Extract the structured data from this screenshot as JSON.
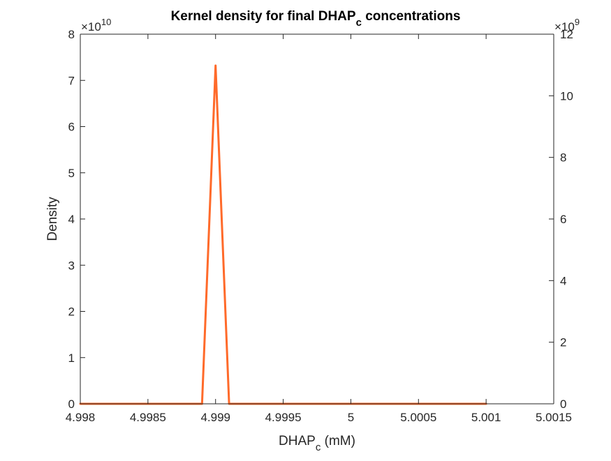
{
  "chart_data": {
    "type": "line",
    "title": {
      "main": "Kernel density for final DHAP",
      "sub": "c",
      "tail": " concentrations"
    },
    "xlabel": {
      "main": "DHAP",
      "sub": "c",
      "tail": " (mM)"
    },
    "ylabel": "Density",
    "xlim": [
      4.998,
      5.0015
    ],
    "ylim_left": [
      0,
      8
    ],
    "ylim_right": [
      0,
      12
    ],
    "left_multiplier": {
      "base": "×10",
      "exp": "10"
    },
    "right_multiplier": {
      "base": "×10",
      "exp": "9"
    },
    "x_ticks": [
      {
        "v": 4.998,
        "label": "4.998"
      },
      {
        "v": 4.9985,
        "label": "4.9985"
      },
      {
        "v": 4.999,
        "label": "4.999"
      },
      {
        "v": 4.9995,
        "label": "4.9995"
      },
      {
        "v": 5.0,
        "label": "5"
      },
      {
        "v": 5.0005,
        "label": "5.0005"
      },
      {
        "v": 5.001,
        "label": "5.001"
      },
      {
        "v": 5.0015,
        "label": "5.0015"
      }
    ],
    "left_ticks": [
      {
        "v": 0,
        "label": "0"
      },
      {
        "v": 1,
        "label": "1"
      },
      {
        "v": 2,
        "label": "2"
      },
      {
        "v": 3,
        "label": "3"
      },
      {
        "v": 4,
        "label": "4"
      },
      {
        "v": 5,
        "label": "5"
      },
      {
        "v": 6,
        "label": "6"
      },
      {
        "v": 7,
        "label": "7"
      },
      {
        "v": 8,
        "label": "8"
      }
    ],
    "right_ticks": [
      {
        "v": 0,
        "label": "0"
      },
      {
        "v": 2,
        "label": "2"
      },
      {
        "v": 4,
        "label": "4"
      },
      {
        "v": 6,
        "label": "6"
      },
      {
        "v": 8,
        "label": "8"
      },
      {
        "v": 10,
        "label": "10"
      },
      {
        "v": 12,
        "label": "12"
      }
    ],
    "grid": false,
    "series": [
      {
        "color": "#FF6A2A",
        "axis": "left",
        "x": [
          4.998,
          4.9989,
          4.999,
          4.9991,
          5.001
        ],
        "y": [
          0,
          0,
          7.32,
          0,
          0
        ]
      }
    ]
  }
}
